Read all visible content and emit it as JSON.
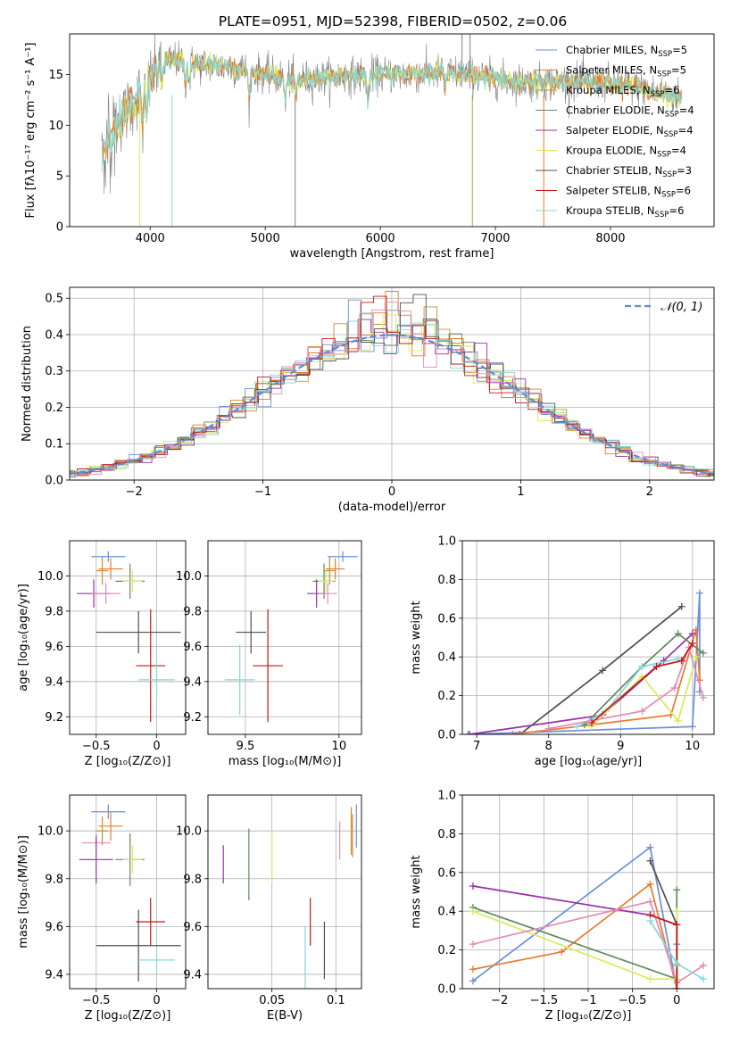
{
  "title": "PLATE=0951, MJD=52398, FIBERID=0502, z=0.06",
  "colors": {
    "Chabrier MILES": "#6a8fd8",
    "Salpeter MILES": "#e67c2e",
    "Kroupa MILES": "#d08c2a",
    "Chabrier ELODIE": "#5e8a5e",
    "Salpeter ELODIE": "#9a2fa8",
    "Kroupa ELODIE": "#d9ec5a",
    "Chabrier STELIB": "#505050",
    "Salpeter STELIB": "#c41818",
    "Kroupa STELIB": "#86d8d8",
    "pink": "#e58ab8",
    "data": "#808080",
    "gaussian": "#5a8fd8"
  },
  "chart_data": [
    {
      "id": "spectrum",
      "type": "line",
      "xlabel": "wavelength [Angstrom, rest frame]",
      "ylabel": "Flux [fλ10⁻¹⁷ erg cm⁻² s⁻¹ A⁻¹]",
      "xlim": [
        3300,
        8900
      ],
      "ylim": [
        0,
        19
      ],
      "xticks": [
        4000,
        5000,
        6000,
        7000,
        8000
      ],
      "yticks": [
        0,
        5,
        10,
        15
      ],
      "legend": [
        "Chabrier MILES, N_SSP=5",
        "Salpeter MILES, N_SSP=5",
        "Kroupa MILES, N_SSP=6",
        "Chabrier ELODIE, N_SSP=4",
        "Salpeter ELODIE, N_SSP=4",
        "Kroupa ELODIE, N_SSP=4",
        "Chabrier STELIB, N_SSP=3",
        "Salpeter STELIB, N_SSP=6",
        "Kroupa STELIB, N_SSP=6"
      ],
      "continuum": [
        [
          3580,
          7
        ],
        [
          3650,
          9
        ],
        [
          3720,
          10
        ],
        [
          3800,
          11.5
        ],
        [
          3900,
          13
        ],
        [
          4000,
          14.5
        ],
        [
          4100,
          16
        ],
        [
          4200,
          16.5
        ],
        [
          4400,
          16
        ],
        [
          4600,
          15.8
        ],
        [
          4800,
          15.5
        ],
        [
          5000,
          15
        ],
        [
          5200,
          14.6
        ],
        [
          5400,
          14.5
        ],
        [
          5600,
          14.8
        ],
        [
          5800,
          14.9
        ],
        [
          6000,
          15
        ],
        [
          6200,
          15
        ],
        [
          6400,
          15.1
        ],
        [
          6600,
          15.2
        ],
        [
          6800,
          14.9
        ],
        [
          7000,
          14.6
        ],
        [
          7200,
          14.3
        ],
        [
          7400,
          14.2
        ],
        [
          7600,
          14.3
        ],
        [
          7800,
          14.3
        ],
        [
          8000,
          14.2
        ],
        [
          8200,
          13.8
        ],
        [
          8400,
          13.3
        ],
        [
          8600,
          12.8
        ]
      ]
    },
    {
      "id": "residual-hist",
      "type": "line",
      "xlabel": "(data-model)/error",
      "ylabel": "Normed distribution",
      "xlim": [
        -2.5,
        2.5
      ],
      "ylim": [
        0,
        0.53
      ],
      "xticks": [
        -2,
        -1,
        0,
        1,
        2
      ],
      "yticks": [
        0.0,
        0.1,
        0.2,
        0.3,
        0.4,
        0.5
      ],
      "legend": [
        "𝒩(0, 1)"
      ],
      "bin_width": 0.1
    },
    {
      "id": "age-vs-Z",
      "type": "scatter",
      "xlabel": "Z [log₁₀(Z/Z⊙)]",
      "ylabel": "age  [log₁₀(age/yr)]",
      "xlim": [
        -0.72,
        0.24
      ],
      "ylim": [
        9.1,
        10.2
      ],
      "xticks": [
        -0.5,
        0.0
      ],
      "yticks": [
        9.2,
        9.4,
        9.6,
        9.8,
        10.0
      ],
      "points": [
        {
          "series": "Chabrier MILES",
          "x": -0.4,
          "y": 10.11,
          "xerr": 0.14,
          "yerr": 0.03
        },
        {
          "series": "Salpeter MILES",
          "x": -0.38,
          "y": 10.04,
          "xerr": 0.1,
          "yerr": 0.06
        },
        {
          "series": "Kroupa MILES",
          "x": -0.45,
          "y": 10.03,
          "xerr": 0.05,
          "yerr": 0.08
        },
        {
          "series": "Chabrier ELODIE",
          "x": -0.22,
          "y": 9.97,
          "xerr": 0.12,
          "yerr": 0.1
        },
        {
          "series": "Kroupa ELODIE",
          "x": -0.2,
          "y": 9.97,
          "xerr": 0.08,
          "yerr": 0.06
        },
        {
          "series": "Salpeter ELODIE",
          "x": -0.52,
          "y": 9.9,
          "xerr": 0.14,
          "yerr": 0.08
        },
        {
          "series": "pink",
          "x": -0.42,
          "y": 9.9,
          "xerr": 0.12,
          "yerr": 0.06
        },
        {
          "series": "Chabrier STELIB",
          "x": -0.15,
          "y": 9.68,
          "xerr": 0.35,
          "yerr": 0.12
        },
        {
          "series": "Salpeter STELIB",
          "x": -0.05,
          "y": 9.49,
          "xerr": 0.12,
          "yerr": 0.32
        },
        {
          "series": "Kroupa STELIB",
          "x": 0.0,
          "y": 9.41,
          "xerr": 0.15,
          "yerr": 0.1
        }
      ]
    },
    {
      "id": "age-vs-mass",
      "type": "scatter",
      "xlabel": "mass [log₁₀(M/M⊙)]",
      "ylabel": "",
      "xlim": [
        9.3,
        10.12
      ],
      "ylim": [
        9.1,
        10.2
      ],
      "xticks": [
        9.5,
        10.0
      ],
      "yticks": [
        9.2,
        9.4,
        9.6,
        9.8,
        10.0
      ],
      "points": [
        {
          "series": "Chabrier MILES",
          "x": 10.02,
          "y": 10.11,
          "xerr": 0.08,
          "yerr": 0.03
        },
        {
          "series": "Salpeter MILES",
          "x": 9.98,
          "y": 10.04,
          "xerr": 0.05,
          "yerr": 0.06
        },
        {
          "series": "Kroupa MILES",
          "x": 9.95,
          "y": 10.03,
          "xerr": 0.03,
          "yerr": 0.08
        },
        {
          "series": "Chabrier ELODIE",
          "x": 9.92,
          "y": 9.97,
          "xerr": 0.06,
          "yerr": 0.1
        },
        {
          "series": "Kroupa ELODIE",
          "x": 9.93,
          "y": 9.97,
          "xerr": 0.04,
          "yerr": 0.06
        },
        {
          "series": "Salpeter ELODIE",
          "x": 9.88,
          "y": 9.9,
          "xerr": 0.05,
          "yerr": 0.08
        },
        {
          "series": "pink",
          "x": 9.94,
          "y": 9.9,
          "xerr": 0.05,
          "yerr": 0.06
        },
        {
          "series": "Chabrier STELIB",
          "x": 9.53,
          "y": 9.68,
          "xerr": 0.08,
          "yerr": 0.12
        },
        {
          "series": "Salpeter STELIB",
          "x": 9.62,
          "y": 9.49,
          "xerr": 0.08,
          "yerr": 0.32
        },
        {
          "series": "Kroupa STELIB",
          "x": 9.47,
          "y": 9.41,
          "xerr": 0.08,
          "yerr": 0.2
        }
      ]
    },
    {
      "id": "mass-weight-vs-age",
      "type": "line",
      "xlabel": "age  [log₁₀(age/yr)]",
      "ylabel": "mass weight",
      "xlim": [
        6.8,
        10.3
      ],
      "ylim": [
        0,
        1.0
      ],
      "xticks": [
        7,
        8,
        9,
        10
      ],
      "yticks": [
        0.0,
        0.2,
        0.4,
        0.6,
        0.8,
        1.0
      ],
      "series": [
        {
          "name": "Chabrier STELIB",
          "points": [
            [
              7.6,
              0.0
            ],
            [
              8.75,
              0.33
            ],
            [
              9.85,
              0.66
            ]
          ]
        },
        {
          "name": "Chabrier MILES",
          "points": [
            [
              6.88,
              0.0
            ],
            [
              10.0,
              0.04
            ],
            [
              10.1,
              0.73
            ],
            [
              10.1,
              0.22
            ]
          ]
        },
        {
          "name": "Salpeter MILES",
          "points": [
            [
              7.5,
              0.0
            ],
            [
              9.7,
              0.1
            ],
            [
              10.05,
              0.54
            ],
            [
              10.1,
              0.28
            ]
          ]
        },
        {
          "name": "Salpeter ELODIE",
          "points": [
            [
              6.9,
              0.0
            ],
            [
              8.75,
              0.1
            ],
            [
              9.6,
              0.38
            ],
            [
              10.0,
              0.52
            ]
          ]
        },
        {
          "name": "Chabrier ELODIE",
          "points": [
            [
              8.5,
              0.05
            ],
            [
              9.3,
              0.35
            ],
            [
              9.8,
              0.52
            ],
            [
              10.15,
              0.42
            ]
          ]
        },
        {
          "name": "Kroupa STELIB",
          "points": [
            [
              8.4,
              0.04
            ],
            [
              8.8,
              0.12
            ],
            [
              9.3,
              0.35
            ],
            [
              9.8,
              0.39
            ]
          ]
        },
        {
          "name": "Kroupa ELODIE",
          "points": [
            [
              8.6,
              0.04
            ],
            [
              9.3,
              0.3
            ],
            [
              9.8,
              0.07
            ],
            [
              10.05,
              0.4
            ]
          ]
        },
        {
          "name": "pink",
          "points": [
            [
              8.0,
              0.03
            ],
            [
              9.3,
              0.12
            ],
            [
              9.75,
              0.24
            ],
            [
              9.95,
              0.45
            ],
            [
              10.15,
              0.19
            ]
          ]
        },
        {
          "name": "Salpeter STELIB",
          "points": [
            [
              8.6,
              0.06
            ],
            [
              9.5,
              0.35
            ],
            [
              9.85,
              0.38
            ],
            [
              10.0,
              0.47
            ]
          ]
        }
      ]
    },
    {
      "id": "mass-vs-Z",
      "type": "scatter",
      "xlabel": "Z [log₁₀(Z/Z⊙)]",
      "ylabel": "mass [log₁₀(M/M⊙)]",
      "xlim": [
        -0.72,
        0.24
      ],
      "ylim": [
        9.34,
        10.15
      ],
      "xticks": [
        -0.5,
        0.0
      ],
      "yticks": [
        9.4,
        9.6,
        9.8,
        10.0
      ],
      "points": [
        {
          "series": "Chabrier MILES",
          "x": -0.4,
          "y": 10.08,
          "xerr": 0.14,
          "yerr": 0.03
        },
        {
          "series": "Salpeter MILES",
          "x": -0.38,
          "y": 10.02,
          "xerr": 0.1,
          "yerr": 0.06
        },
        {
          "series": "Kroupa MILES",
          "x": -0.45,
          "y": 10.0,
          "xerr": 0.05,
          "yerr": 0.06
        },
        {
          "series": "pink",
          "x": -0.5,
          "y": 9.95,
          "xerr": 0.12,
          "yerr": 0.04
        },
        {
          "series": "Chabrier ELODIE",
          "x": -0.22,
          "y": 9.88,
          "xerr": 0.12,
          "yerr": 0.11
        },
        {
          "series": "Kroupa ELODIE",
          "x": -0.2,
          "y": 9.88,
          "xerr": 0.08,
          "yerr": 0.06
        },
        {
          "series": "Salpeter ELODIE",
          "x": -0.5,
          "y": 9.88,
          "xerr": 0.14,
          "yerr": 0.1
        },
        {
          "series": "Salpeter STELIB",
          "x": -0.05,
          "y": 9.62,
          "xerr": 0.12,
          "yerr": 0.1
        },
        {
          "series": "Chabrier STELIB",
          "x": -0.15,
          "y": 9.52,
          "xerr": 0.35,
          "yerr": 0.15
        },
        {
          "series": "Kroupa STELIB",
          "x": 0.0,
          "y": 9.46,
          "xerr": 0.15,
          "yerr": 0.05
        }
      ]
    },
    {
      "id": "mass-vs-ebv",
      "type": "scatter",
      "xlabel": "E(B-V)",
      "ylabel": "",
      "xlim": [
        0.0,
        0.12
      ],
      "ylim": [
        9.34,
        10.15
      ],
      "xticks": [
        0.05,
        0.1
      ],
      "yticks": [
        9.4,
        9.6,
        9.8,
        10.0
      ],
      "points": [
        {
          "series": "Salpeter ELODIE",
          "x": 0.012,
          "y": 9.86,
          "yerr": 0.08
        },
        {
          "series": "Chabrier ELODIE",
          "x": 0.032,
          "y": 9.86,
          "yerr": 0.15
        },
        {
          "series": "Kroupa ELODIE",
          "x": 0.05,
          "y": 9.89,
          "yerr": 0.11
        },
        {
          "series": "Salpeter STELIB",
          "x": 0.08,
          "y": 9.62,
          "yerr": 0.1
        },
        {
          "series": "Kroupa STELIB",
          "x": 0.076,
          "y": 9.46,
          "yerr": 0.14
        },
        {
          "series": "Chabrier STELIB",
          "x": 0.091,
          "y": 9.5,
          "yerr": 0.12
        },
        {
          "series": "pink",
          "x": 0.103,
          "y": 9.96,
          "yerr": 0.08
        },
        {
          "series": "Kroupa MILES",
          "x": 0.112,
          "y": 10.0,
          "yerr": 0.1
        },
        {
          "series": "Salpeter MILES",
          "x": 0.113,
          "y": 9.98,
          "yerr": 0.09
        },
        {
          "series": "Chabrier MILES",
          "x": 0.116,
          "y": 10.02,
          "yerr": 0.09
        }
      ]
    },
    {
      "id": "mass-weight-vs-Z",
      "type": "line",
      "xlabel": "Z [log₁₀(Z/Z⊙)]",
      "ylabel": "mass weight",
      "xlim": [
        -2.42,
        0.42
      ],
      "ylim": [
        0,
        1.0
      ],
      "xticks": [
        -2.0,
        -1.5,
        -1.0,
        -0.5,
        0.0
      ],
      "yticks": [
        0.0,
        0.2,
        0.4,
        0.6,
        0.8,
        1.0
      ],
      "series": [
        {
          "name": "Chabrier MILES",
          "points": [
            [
              -2.3,
              0.04
            ],
            [
              -0.3,
              0.73
            ],
            [
              0.0,
              0.0
            ],
            [
              0.0,
              0.23
            ]
          ]
        },
        {
          "name": "Salpeter MILES",
          "points": [
            [
              -2.3,
              0.1
            ],
            [
              -1.3,
              0.19
            ],
            [
              -0.3,
              0.54
            ],
            [
              0.0,
              0.0
            ],
            [
              0.0,
              0.12
            ]
          ]
        },
        {
          "name": "Salpeter ELODIE",
          "points": [
            [
              -2.3,
              0.53
            ],
            [
              -0.3,
              0.38
            ],
            [
              0.0,
              0.33
            ]
          ]
        },
        {
          "name": "Chabrier ELODIE",
          "points": [
            [
              -2.3,
              0.42
            ],
            [
              0.0,
              0.05
            ],
            [
              0.0,
              0.51
            ]
          ]
        },
        {
          "name": "Kroupa ELODIE",
          "points": [
            [
              -2.3,
              0.4
            ],
            [
              -0.3,
              0.05
            ],
            [
              0.0,
              0.05
            ],
            [
              0.0,
              0.4
            ]
          ]
        },
        {
          "name": "pink",
          "points": [
            [
              -2.3,
              0.23
            ],
            [
              -0.3,
              0.45
            ],
            [
              0.0,
              0.03
            ],
            [
              0.3,
              0.12
            ]
          ]
        },
        {
          "name": "Chabrier STELIB",
          "points": [
            [
              -0.3,
              0.66
            ],
            [
              0.0,
              0.33
            ],
            [
              0.0,
              0.0
            ]
          ]
        },
        {
          "name": "Salpeter STELIB",
          "points": [
            [
              -0.3,
              0.38
            ],
            [
              0.0,
              0.33
            ],
            [
              0.0,
              0.0
            ]
          ]
        },
        {
          "name": "Kroupa STELIB",
          "points": [
            [
              -0.3,
              0.35
            ],
            [
              0.0,
              0.13
            ],
            [
              0.3,
              0.05
            ]
          ]
        }
      ]
    }
  ]
}
